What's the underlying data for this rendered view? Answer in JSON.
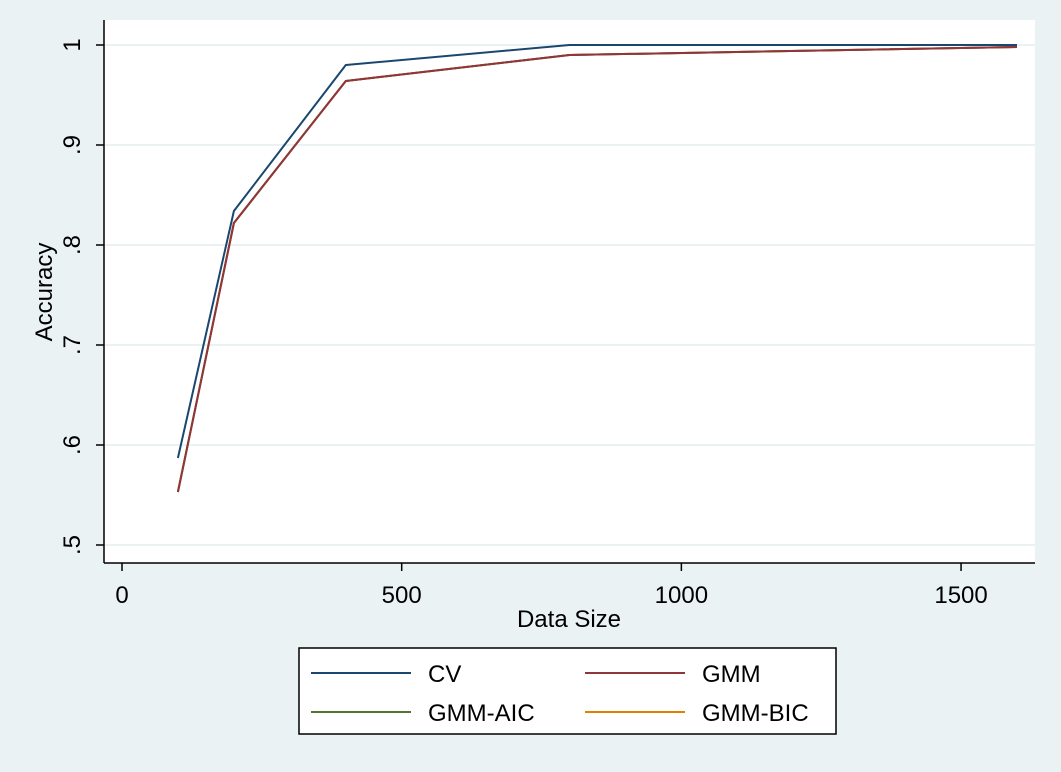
{
  "chart_data": {
    "type": "line",
    "xlabel": "Data Size",
    "ylabel": "Accuracy",
    "xlim": [
      0,
      1600
    ],
    "ylim": [
      0.5,
      1.0
    ],
    "x_ticks": [
      0,
      500,
      1000,
      1500
    ],
    "x_tick_labels": [
      "0",
      "500",
      "1000",
      "1500"
    ],
    "y_ticks": [
      0.5,
      0.6,
      0.7,
      0.8,
      0.9,
      1.0
    ],
    "y_tick_labels": [
      ".5",
      ".6",
      ".7",
      ".8",
      ".9",
      "1"
    ],
    "grid": true,
    "legend_position": "bottom",
    "x": [
      100,
      200,
      400,
      800,
      1600
    ],
    "series": [
      {
        "name": "CV",
        "color": "#1a476f",
        "values": [
          0.587,
          0.834,
          0.98,
          1.0,
          1.0
        ]
      },
      {
        "name": "GMM",
        "color": "#90353b",
        "values": [
          0.553,
          0.822,
          0.964,
          0.99,
          0.998
        ]
      },
      {
        "name": "GMM-AIC",
        "color": "#55752f",
        "values": [
          0.553,
          0.822,
          0.964,
          0.99,
          0.998
        ]
      },
      {
        "name": "GMM-BIC",
        "color": "#e37e00",
        "values": [
          0.553,
          0.822,
          0.964,
          0.99,
          0.998
        ]
      }
    ]
  }
}
